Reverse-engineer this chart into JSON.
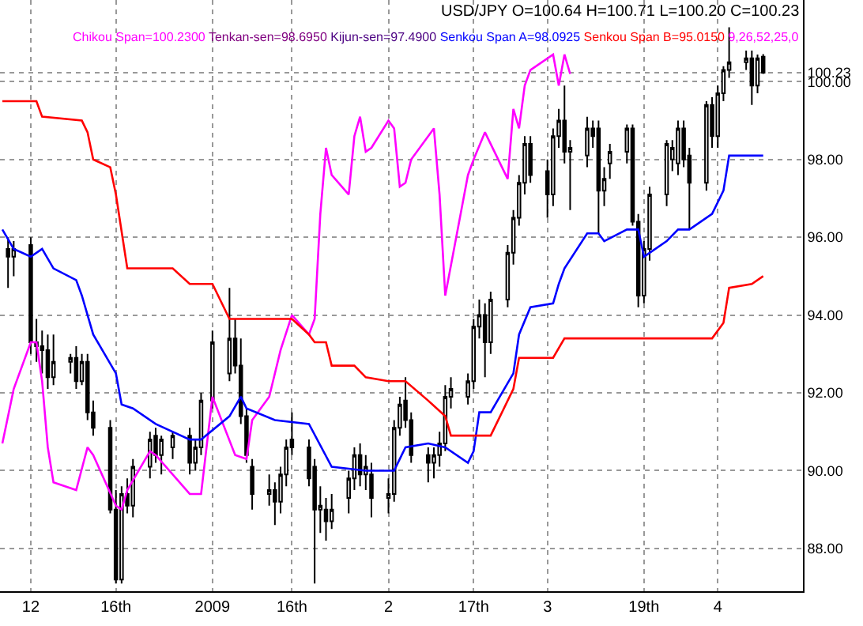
{
  "chart_data": {
    "type": "candlestick",
    "color": "#000000",
    "annotations": [
      "USD/JPY O=100.64 H=100.71 L=100.20 C=100.23",
      "Chikou Span=100.2300",
      "Tenkan-sen=98.6950",
      "Kijun-sen=97.4900",
      "Senkou Span A=98.0925",
      "Senkou Span B=95.0150",
      "9,26,52,25,0"
    ],
    "x": [
      "2008-11-27",
      "2008-11-28",
      "2008-12-01",
      "2008-12-02",
      "2008-12-03",
      "2008-12-04",
      "2008-12-05",
      "2008-12-08",
      "2008-12-09",
      "2008-12-10",
      "2008-12-11",
      "2008-12-12",
      "2008-12-15",
      "2008-12-16",
      "2008-12-17",
      "2008-12-18",
      "2008-12-19",
      "2008-12-22",
      "2008-12-23",
      "2008-12-24",
      "2008-12-26",
      "2008-12-29",
      "2008-12-30",
      "2008-12-31",
      "2009-01-02",
      "2009-01-05",
      "2009-01-06",
      "2009-01-07",
      "2009-01-08",
      "2009-01-09",
      "2009-01-12",
      "2009-01-13",
      "2009-01-14",
      "2009-01-15",
      "2009-01-16",
      "2009-01-19",
      "2009-01-20",
      "2009-01-21",
      "2009-01-22",
      "2009-01-23",
      "2009-01-26",
      "2009-01-27",
      "2009-01-28",
      "2009-01-29",
      "2009-01-30",
      "2009-02-02",
      "2009-02-03",
      "2009-02-04",
      "2009-02-05",
      "2009-02-06",
      "2009-02-09",
      "2009-02-10",
      "2009-02-11",
      "2009-02-12",
      "2009-02-13",
      "2009-02-16",
      "2009-02-17",
      "2009-02-18",
      "2009-02-19",
      "2009-02-20",
      "2009-02-23",
      "2009-02-24",
      "2009-02-25",
      "2009-02-26",
      "2009-02-27",
      "2009-03-02",
      "2009-03-03",
      "2009-03-04",
      "2009-03-05",
      "2009-03-06",
      "2009-03-09",
      "2009-03-10",
      "2009-03-11",
      "2009-03-12",
      "2009-03-13",
      "2009-03-16",
      "2009-03-17",
      "2009-03-18",
      "2009-03-19",
      "2009-03-20",
      "2009-03-23",
      "2009-03-24",
      "2009-03-25",
      "2009-03-26",
      "2009-03-27",
      "2009-03-30",
      "2009-03-31",
      "2009-04-01",
      "2009-04-02",
      "2009-04-03",
      "2009-04-06",
      "2009-04-07",
      "2009-04-08",
      "2009-04-09"
    ],
    "ohlc": [
      [
        95.7,
        96.0,
        94.7,
        95.5
      ],
      [
        95.5,
        95.9,
        95.0,
        95.7
      ],
      [
        95.8,
        96.0,
        93.0,
        93.3
      ],
      [
        93.3,
        93.9,
        92.8,
        93.2
      ],
      [
        93.2,
        93.6,
        92.5,
        93.1
      ],
      [
        93.1,
        93.5,
        92.1,
        92.4
      ],
      [
        92.4,
        93.5,
        92.2,
        92.8
      ],
      [
        92.8,
        93.0,
        92.5,
        92.9
      ],
      [
        92.9,
        93.2,
        92.1,
        92.3
      ],
      [
        92.3,
        93.0,
        92.2,
        92.8
      ],
      [
        92.8,
        93.0,
        91.3,
        91.5
      ],
      [
        91.5,
        91.8,
        90.9,
        91.1
      ],
      [
        91.1,
        91.3,
        88.9,
        89.0
      ],
      [
        89.0,
        89.5,
        87.1,
        87.2
      ],
      [
        87.2,
        89.6,
        87.1,
        89.4
      ],
      [
        89.4,
        89.8,
        88.9,
        89.1
      ],
      [
        89.1,
        90.3,
        88.8,
        90.1
      ],
      [
        90.1,
        91.0,
        89.8,
        90.8
      ],
      [
        90.9,
        91.1,
        90.2,
        90.4
      ],
      [
        90.4,
        90.9,
        89.9,
        90.8
      ],
      [
        90.6,
        91.0,
        90.3,
        90.9
      ],
      [
        90.9,
        91.1,
        89.9,
        90.2
      ],
      [
        90.2,
        90.8,
        90.0,
        90.6
      ],
      [
        90.6,
        92.0,
        90.4,
        91.8
      ],
      [
        91.8,
        93.6,
        91.6,
        93.3
      ],
      [
        92.5,
        94.7,
        92.3,
        93.4
      ],
      [
        93.4,
        93.9,
        92.5,
        92.7
      ],
      [
        92.7,
        93.4,
        91.2,
        91.4
      ],
      [
        91.4,
        91.6,
        90.2,
        90.4
      ],
      [
        90.1,
        90.3,
        89.0,
        89.4
      ],
      [
        89.4,
        89.9,
        89.1,
        89.5
      ],
      [
        89.5,
        89.7,
        88.6,
        89.2
      ],
      [
        89.2,
        90.1,
        88.9,
        89.9
      ],
      [
        89.9,
        90.8,
        89.6,
        90.6
      ],
      [
        90.8,
        91.5,
        90.4,
        90.6
      ],
      [
        90.6,
        90.8,
        89.6,
        89.8
      ],
      [
        90.1,
        90.3,
        87.1,
        89.0
      ],
      [
        89.0,
        89.6,
        88.4,
        89.1
      ],
      [
        89.0,
        89.3,
        88.2,
        88.7
      ],
      [
        88.7,
        89.4,
        88.5,
        89.0
      ],
      [
        89.3,
        90.0,
        88.9,
        89.8
      ],
      [
        89.8,
        90.6,
        89.5,
        90.4
      ],
      [
        90.4,
        90.7,
        89.6,
        89.9
      ],
      [
        89.9,
        90.4,
        89.5,
        90.1
      ],
      [
        89.9,
        90.2,
        88.8,
        89.3
      ],
      [
        89.3,
        89.8,
        88.9,
        89.4
      ],
      [
        89.4,
        91.3,
        89.2,
        91.1
      ],
      [
        91.1,
        91.9,
        90.9,
        91.7
      ],
      [
        91.8,
        92.4,
        91.1,
        91.3
      ],
      [
        91.3,
        91.5,
        90.2,
        90.4
      ],
      [
        90.4,
        90.6,
        89.7,
        90.2
      ],
      [
        90.2,
        90.6,
        89.8,
        90.4
      ],
      [
        90.4,
        91.0,
        90.1,
        90.7
      ],
      [
        90.7,
        92.2,
        90.5,
        91.9
      ],
      [
        91.9,
        92.4,
        91.6,
        92.1
      ],
      [
        91.9,
        92.5,
        91.7,
        92.3
      ],
      [
        92.3,
        93.9,
        92.1,
        93.7
      ],
      [
        93.7,
        94.4,
        93.4,
        94.0
      ],
      [
        94.0,
        94.3,
        92.4,
        93.3
      ],
      [
        93.3,
        94.6,
        93.0,
        94.4
      ],
      [
        94.4,
        95.8,
        94.2,
        95.6
      ],
      [
        95.6,
        96.7,
        95.3,
        96.5
      ],
      [
        96.5,
        97.6,
        96.3,
        97.4
      ],
      [
        97.4,
        98.6,
        97.1,
        98.4
      ],
      [
        98.4,
        98.6,
        97.4,
        97.6
      ],
      [
        97.7,
        98.0,
        96.5,
        97.1
      ],
      [
        97.1,
        98.8,
        96.8,
        98.6
      ],
      [
        98.6,
        99.3,
        98.3,
        99.0
      ],
      [
        99.0,
        99.9,
        97.9,
        98.2
      ],
      [
        98.2,
        98.5,
        96.7,
        98.3
      ],
      [
        98.1,
        99.1,
        97.8,
        98.8
      ],
      [
        98.8,
        99.0,
        98.3,
        98.6
      ],
      [
        98.8,
        99.0,
        96.1,
        97.2
      ],
      [
        97.2,
        97.8,
        96.8,
        97.5
      ],
      [
        97.9,
        98.4,
        97.5,
        98.2
      ],
      [
        98.2,
        98.9,
        97.9,
        98.8
      ],
      [
        98.8,
        98.9,
        96.3,
        96.4
      ],
      [
        96.4,
        96.6,
        94.2,
        94.5
      ],
      [
        94.5,
        95.9,
        94.3,
        95.7
      ],
      [
        95.7,
        97.3,
        95.4,
        97.1
      ],
      [
        97.1,
        98.5,
        96.8,
        98.4
      ],
      [
        98.0,
        98.5,
        97.7,
        98.3
      ],
      [
        97.9,
        99.0,
        97.6,
        98.8
      ],
      [
        98.8,
        99.0,
        97.8,
        98.0
      ],
      [
        98.1,
        98.3,
        96.2,
        97.4
      ],
      [
        97.4,
        99.5,
        97.2,
        99.4
      ],
      [
        99.4,
        99.6,
        98.3,
        98.6
      ],
      [
        98.6,
        99.9,
        98.3,
        99.7
      ],
      [
        99.7,
        100.4,
        99.5,
        100.3
      ],
      [
        100.3,
        101.4,
        100.1,
        100.5
      ],
      [
        100.5,
        100.8,
        100.3,
        100.6
      ],
      [
        100.6,
        100.8,
        99.4,
        99.9
      ],
      [
        99.9,
        100.7,
        99.7,
        100.6
      ],
      [
        100.64,
        100.71,
        100.2,
        100.23
      ]
    ],
    "series": [
      {
        "type": "line",
        "color": "#ff00ff",
        "x": [
          "2008-11-26",
          "2008-11-28",
          "2008-12-01",
          "2008-12-02",
          "2008-12-03",
          "2008-12-04",
          "2008-12-05",
          "2008-12-09",
          "2008-12-11",
          "2008-12-12",
          "2008-12-16",
          "2008-12-17",
          "2008-12-18",
          "2008-12-22",
          "2008-12-23",
          "2008-12-29",
          "2008-12-31",
          "2009-01-02",
          "2009-01-06",
          "2009-01-08",
          "2009-01-09",
          "2009-01-12",
          "2009-01-14",
          "2009-01-16",
          "2009-01-19",
          "2009-01-20",
          "2009-01-21",
          "2009-01-22",
          "2009-01-23",
          "2009-01-26",
          "2009-01-27",
          "2009-01-28",
          "2009-01-29",
          "2009-01-30",
          "2009-02-02",
          "2009-02-03",
          "2009-02-04",
          "2009-02-05",
          "2009-02-06",
          "2009-02-10",
          "2009-02-11",
          "2009-02-12",
          "2009-02-16",
          "2009-02-17",
          "2009-02-19",
          "2009-02-23",
          "2009-02-24",
          "2009-02-25",
          "2009-02-26",
          "2009-02-27",
          "2009-03-03",
          "2009-03-04",
          "2009-03-05",
          "2009-03-06"
        ],
        "values": [
          90.7,
          92.1,
          93.3,
          93.3,
          92.3,
          90.6,
          89.7,
          89.5,
          90.6,
          90.4,
          89.1,
          89.0,
          89.5,
          90.5,
          90.4,
          89.4,
          89.4,
          91.9,
          90.4,
          90.3,
          91.3,
          91.9,
          93.1,
          94.0,
          93.5,
          93.9,
          96.6,
          98.3,
          97.6,
          97.1,
          98.6,
          99.1,
          98.2,
          98.3,
          99.0,
          98.8,
          97.3,
          97.4,
          98.0,
          98.8,
          97.1,
          94.5,
          97.6,
          98.0,
          98.7,
          97.5,
          99.3,
          98.8,
          99.9,
          100.3,
          100.7,
          99.9,
          100.7,
          100.2
        ]
      },
      {
        "type": "line",
        "color": "#0000ff",
        "x": [
          "2008-11-26",
          "2008-11-28",
          "2008-12-01",
          "2008-12-03",
          "2008-12-05",
          "2008-12-09",
          "2008-12-10",
          "2008-12-12",
          "2008-12-16",
          "2008-12-17",
          "2008-12-19",
          "2008-12-23",
          "2008-12-29",
          "2008-12-31",
          "2009-01-05",
          "2009-01-07",
          "2009-01-08",
          "2009-01-13",
          "2009-01-19",
          "2009-01-23",
          "2009-01-29",
          "2009-02-03",
          "2009-02-05",
          "2009-02-09",
          "2009-02-12",
          "2009-02-16",
          "2009-02-17",
          "2009-02-18",
          "2009-02-20",
          "2009-02-24",
          "2009-02-25",
          "2009-02-27",
          "2009-03-03",
          "2009-03-04",
          "2009-03-05",
          "2009-03-09",
          "2009-03-11",
          "2009-03-12",
          "2009-03-16",
          "2009-03-18",
          "2009-03-19",
          "2009-03-20",
          "2009-03-23",
          "2009-03-25",
          "2009-03-27",
          "2009-03-31",
          "2009-04-02",
          "2009-04-03",
          "2009-04-09"
        ],
        "values": [
          96.2,
          95.7,
          95.5,
          95.7,
          95.2,
          94.9,
          94.5,
          93.5,
          92.5,
          91.7,
          91.6,
          91.2,
          90.8,
          90.8,
          91.4,
          91.9,
          91.6,
          91.3,
          91.2,
          90.1,
          90.0,
          90.0,
          90.6,
          90.7,
          90.6,
          90.2,
          90.5,
          91.5,
          91.5,
          92.5,
          93.5,
          94.2,
          94.3,
          94.8,
          95.2,
          96.1,
          96.1,
          95.9,
          96.2,
          96.2,
          95.5,
          95.6,
          95.9,
          96.2,
          96.2,
          96.6,
          97.2,
          98.1,
          98.1
        ]
      },
      {
        "type": "line",
        "color": "#ff0000",
        "x": [
          "2008-11-26",
          "2008-12-02",
          "2008-12-03",
          "2008-12-10",
          "2008-12-11",
          "2008-12-12",
          "2008-12-15",
          "2008-12-16",
          "2008-12-18",
          "2008-12-26",
          "2008-12-29",
          "2009-01-02",
          "2009-01-05",
          "2009-01-16",
          "2009-01-19",
          "2009-01-20",
          "2009-01-22",
          "2009-01-23",
          "2009-01-27",
          "2009-01-29",
          "2009-02-02",
          "2009-02-05",
          "2009-02-09",
          "2009-02-12",
          "2009-02-13",
          "2009-02-20",
          "2009-02-24",
          "2009-02-25",
          "2009-03-03",
          "2009-03-05",
          "2009-03-31",
          "2009-04-02",
          "2009-04-03",
          "2009-04-07",
          "2009-04-09"
        ],
        "values": [
          99.5,
          99.5,
          99.1,
          99.0,
          98.7,
          98.0,
          97.8,
          97.1,
          95.2,
          95.2,
          94.8,
          94.8,
          93.9,
          93.9,
          93.5,
          93.3,
          93.3,
          92.7,
          92.7,
          92.4,
          92.3,
          92.3,
          91.8,
          91.4,
          90.9,
          90.9,
          92.1,
          92.9,
          92.9,
          93.4,
          93.4,
          93.8,
          94.7,
          94.8,
          95.0
        ]
      }
    ],
    "xlim": [
      "2008-11-25T14:00",
      "2009-04-16"
    ],
    "ylim": [
      86.9,
      102.1
    ],
    "xticks": [
      {
        "value": "2008-12-01",
        "label": "12"
      },
      {
        "value": "2008-12-16",
        "label": "16th"
      },
      {
        "value": "2009-01-02",
        "label": "2009"
      },
      {
        "value": "2009-01-16",
        "label": "16th"
      },
      {
        "value": "2009-02-02",
        "label": "2"
      },
      {
        "value": "2009-02-17",
        "label": "17th"
      },
      {
        "value": "2009-03-02",
        "label": "3"
      },
      {
        "value": "2009-03-19",
        "label": "19th"
      },
      {
        "value": "2009-04-01",
        "label": "4"
      }
    ],
    "yticks": [
      {
        "value": 88,
        "label": "88.00"
      },
      {
        "value": 90,
        "label": "90.00"
      },
      {
        "value": 92,
        "label": "92.00"
      },
      {
        "value": 94,
        "label": "94.00"
      },
      {
        "value": 96,
        "label": "96.00"
      },
      {
        "value": 98,
        "label": "98.00"
      },
      {
        "value": 100,
        "label": "100.00"
      },
      {
        "value": 100.23,
        "label": "100.23"
      }
    ],
    "grid": true
  }
}
